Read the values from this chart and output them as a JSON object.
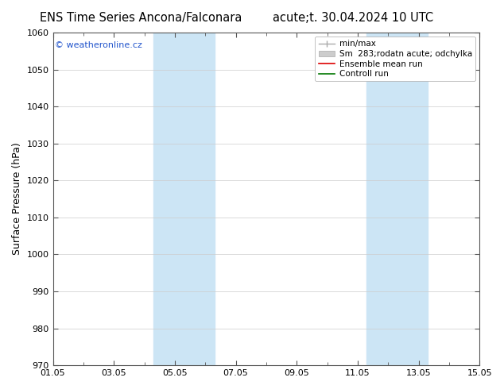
{
  "title_left": "ENS Time Series Ancona/Falconara",
  "title_right": "acute;t. 30.04.2024 10 UTC",
  "ylabel": "Surface Pressure (hPa)",
  "ylim": [
    970,
    1060
  ],
  "yticks": [
    970,
    980,
    990,
    1000,
    1010,
    1020,
    1030,
    1040,
    1050,
    1060
  ],
  "xtick_labels": [
    "01.05",
    "03.05",
    "05.05",
    "07.05",
    "09.05",
    "11.05",
    "13.05",
    "15.05"
  ],
  "xtick_positions": [
    0,
    2,
    4,
    6,
    8,
    10,
    12,
    14
  ],
  "xlim": [
    0,
    14
  ],
  "shade_bands": [
    {
      "start": 3.3,
      "end": 5.3,
      "color": "#cce5f5",
      "alpha": 1.0
    },
    {
      "start": 10.3,
      "end": 12.3,
      "color": "#cce5f5",
      "alpha": 1.0
    }
  ],
  "watermark": "© weatheronline.cz",
  "watermark_color": "#2255cc",
  "legend_labels": [
    "min/max",
    "Sm  283;rodatn acute; odchylka",
    "Ensemble mean run",
    "Controll run"
  ],
  "legend_colors": [
    "#aaaaaa",
    "#cccccc",
    "#dd0000",
    "#007700"
  ],
  "bg_color": "#ffffff",
  "plot_bg_color": "#ffffff",
  "grid_color": "#cccccc",
  "title_fontsize": 10.5,
  "tick_fontsize": 8,
  "ylabel_fontsize": 9,
  "legend_fontsize": 7.5
}
